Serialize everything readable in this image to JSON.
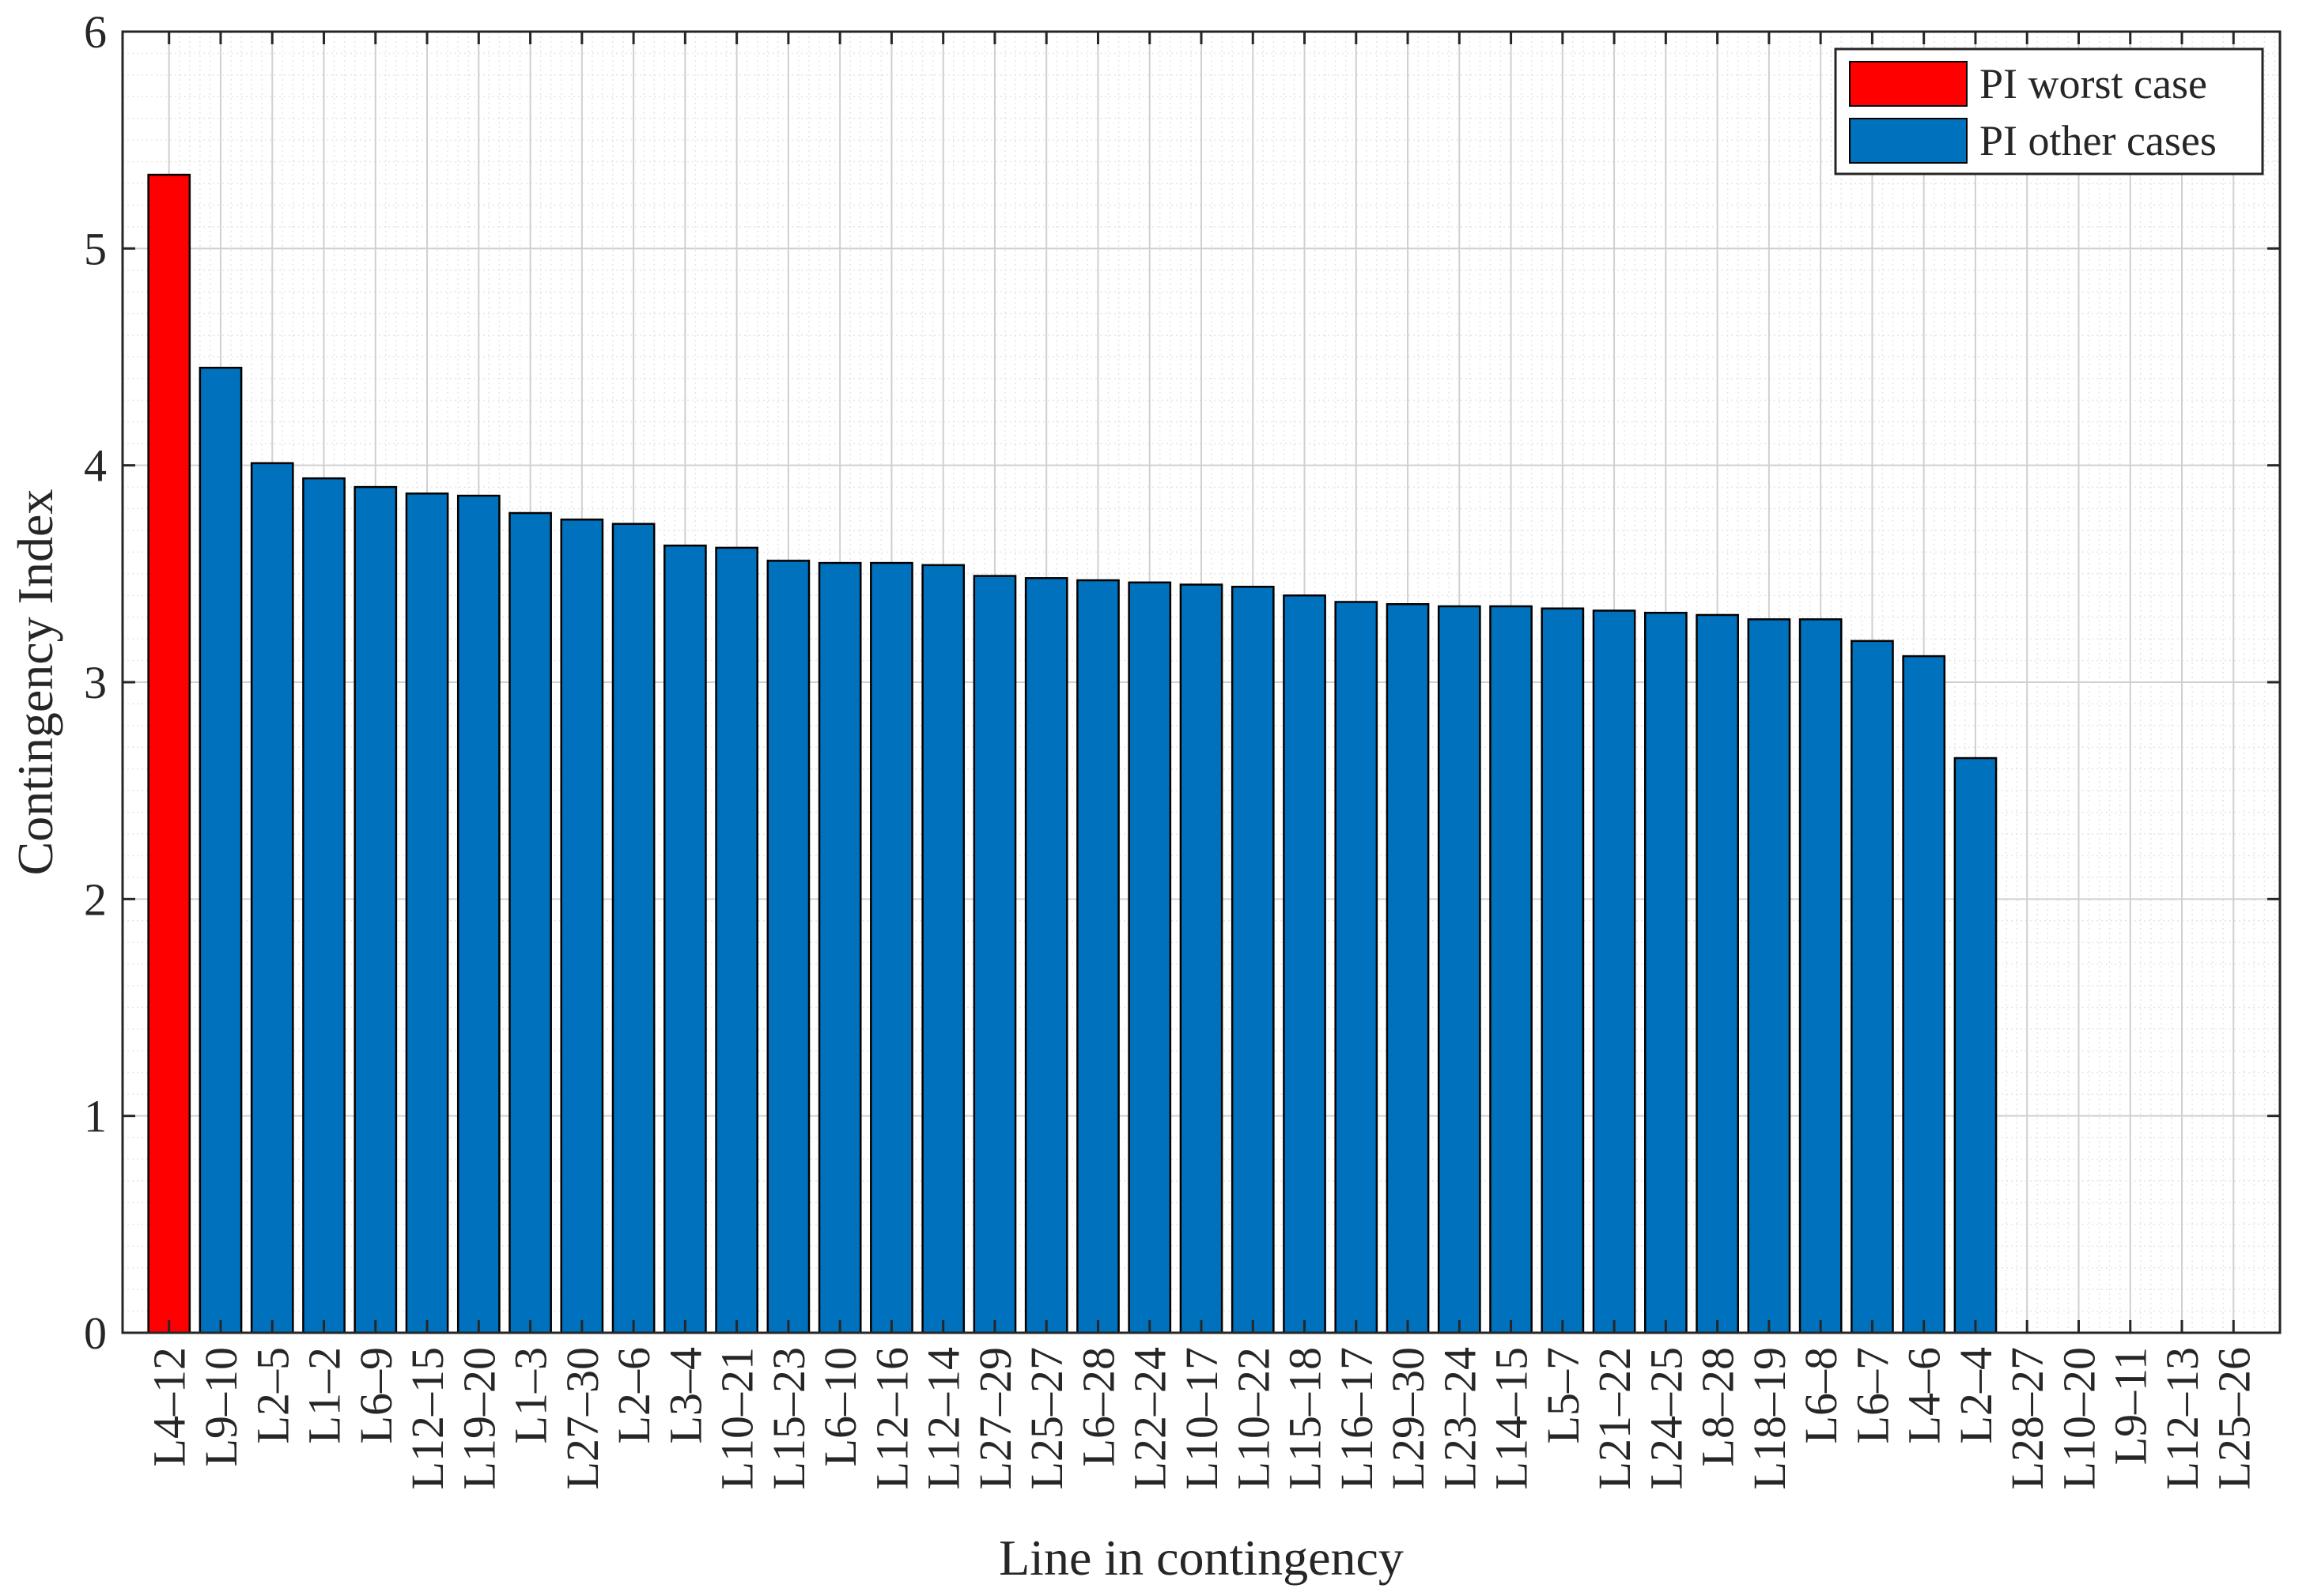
{
  "chart_data": {
    "type": "bar",
    "title": "",
    "xlabel": "Line in contingency",
    "ylabel": "Contingency Index",
    "ylim": [
      0,
      6
    ],
    "yticks": [
      "0",
      "1",
      "2",
      "3",
      "4",
      "5",
      "6"
    ],
    "grid": true,
    "minor_grid": true,
    "legend_position": "top-right",
    "categories": [
      "L4–12",
      "L9–10",
      "L2–5",
      "L1–2",
      "L6–9",
      "L12–15",
      "L19–20",
      "L1–3",
      "L27–30",
      "L2–6",
      "L3–4",
      "L10–21",
      "L15–23",
      "L6–10",
      "L12–16",
      "L12–14",
      "L27–29",
      "L25–27",
      "L6–28",
      "L22–24",
      "L10–17",
      "L10–22",
      "L15–18",
      "L16–17",
      "L29–30",
      "L23–24",
      "L14–15",
      "L5–7",
      "L21–22",
      "L24–25",
      "L8–28",
      "L18–19",
      "L6–8",
      "L6–7",
      "L4–6",
      "L2–4",
      "L28–27",
      "L10–20",
      "L9–11",
      "L12–13",
      "L25–26"
    ],
    "series": [
      {
        "name": "PI worst case",
        "color": "#ff0000",
        "values": [
          5.34,
          0,
          0,
          0,
          0,
          0,
          0,
          0,
          0,
          0,
          0,
          0,
          0,
          0,
          0,
          0,
          0,
          0,
          0,
          0,
          0,
          0,
          0,
          0,
          0,
          0,
          0,
          0,
          0,
          0,
          0,
          0,
          0,
          0,
          0,
          0,
          0,
          0,
          0,
          0,
          0
        ]
      },
      {
        "name": "PI other cases",
        "color": "#0072bd",
        "values": [
          0,
          4.45,
          4.01,
          3.94,
          3.9,
          3.87,
          3.86,
          3.78,
          3.75,
          3.73,
          3.63,
          3.62,
          3.56,
          3.55,
          3.55,
          3.54,
          3.49,
          3.48,
          3.47,
          3.46,
          3.45,
          3.44,
          3.4,
          3.37,
          3.36,
          3.35,
          3.35,
          3.34,
          3.33,
          3.32,
          3.31,
          3.29,
          3.29,
          3.19,
          3.12,
          2.65,
          0,
          0,
          0,
          0,
          0
        ]
      }
    ]
  }
}
